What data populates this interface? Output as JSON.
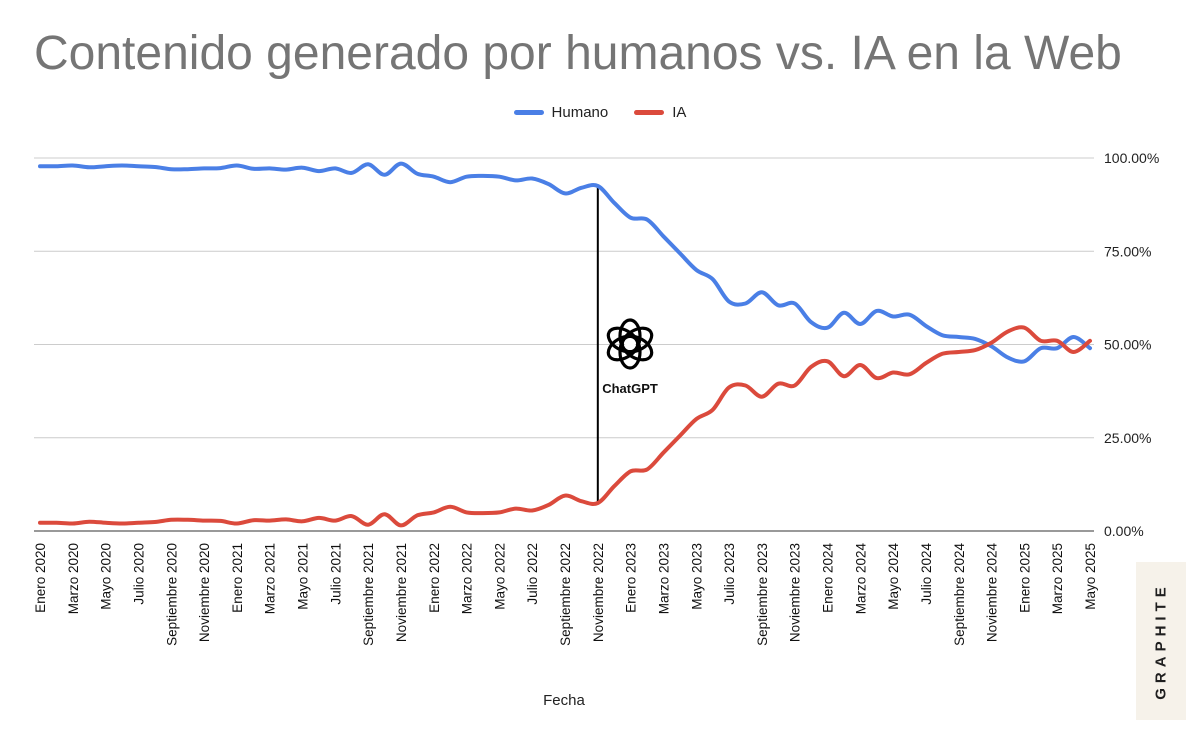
{
  "colors": {
    "human": "#4a7fe6",
    "ai": "#db4a3c",
    "grid": "#cccccc",
    "title": "#757575"
  },
  "badge": {
    "text": "GRAPHITE"
  },
  "chart_data": {
    "type": "line",
    "title": "Contenido generado por humanos vs. IA en la Web",
    "xlabel": "Fecha",
    "ylabel": "",
    "ylim": [
      0,
      100
    ],
    "y_ticks": [
      0,
      25,
      50,
      75,
      100
    ],
    "y_tick_labels": [
      "0.00%",
      "25.00%",
      "50.00%",
      "75.00%",
      "100.00%"
    ],
    "legend_position": "top-center",
    "annotation": {
      "label": "ChatGPT",
      "x_index": 34,
      "icon": "openai-logo"
    },
    "x_tick_labels": [
      "Enero 2020",
      "Marzo 2020",
      "Mayo 2020",
      "Julio 2020",
      "Septiembre 2020",
      "Noviembre 2020",
      "Enero 2021",
      "Marzo 2021",
      "Mayo 2021",
      "Julio 2021",
      "Septiembre 2021",
      "Noviembre 2021",
      "Enero 2022",
      "Marzo 2022",
      "Mayo 2022",
      "Julio 2022",
      "Septiembre 2022",
      "Noviembre 2022",
      "Enero 2023",
      "Marzo 2023",
      "Mayo 2023",
      "Julio 2023",
      "Septiembre 2023",
      "Noviembre 2023",
      "Enero 2024",
      "Marzo 2024",
      "Mayo 2024",
      "Julio 2024",
      "Septiembre 2024",
      "Noviembre 2024",
      "Enero 2025",
      "Marzo 2025",
      "Mayo 2025"
    ],
    "series": [
      {
        "name": "Humano",
        "color": "#4a7fe6",
        "values": [
          97.8,
          97.8,
          98.0,
          97.5,
          97.8,
          98.0,
          97.8,
          97.6,
          97.0,
          97.0,
          97.2,
          97.3,
          98.0,
          97.1,
          97.2,
          96.9,
          97.4,
          96.5,
          97.2,
          96.0,
          98.3,
          95.5,
          98.5,
          95.8,
          95.0,
          93.5,
          95.0,
          95.2,
          95.0,
          94.0,
          94.5,
          93.0,
          90.5,
          92.0,
          92.5,
          88.0,
          84.0,
          83.5,
          79.0,
          74.5,
          70.0,
          67.5,
          61.5,
          61.0,
          64.0,
          60.5,
          61.0,
          56.0,
          54.5,
          58.5,
          55.5,
          59.0,
          57.5,
          58.0,
          55.0,
          52.5,
          52.0,
          51.5,
          49.5,
          46.5,
          45.5,
          49.0,
          49.0,
          52.0,
          49.0
        ]
      },
      {
        "name": "IA",
        "color": "#db4a3c",
        "values": [
          2.2,
          2.2,
          2.0,
          2.5,
          2.2,
          2.0,
          2.2,
          2.4,
          3.0,
          3.0,
          2.8,
          2.7,
          2.0,
          2.9,
          2.8,
          3.1,
          2.6,
          3.5,
          2.8,
          4.0,
          1.7,
          4.5,
          1.5,
          4.2,
          5.0,
          6.5,
          5.0,
          4.8,
          5.0,
          6.0,
          5.5,
          7.0,
          9.5,
          8.0,
          7.5,
          12.0,
          16.0,
          16.5,
          21.0,
          25.5,
          30.0,
          32.5,
          38.5,
          39.0,
          36.0,
          39.5,
          39.0,
          44.0,
          45.5,
          41.5,
          44.5,
          41.0,
          42.5,
          42.0,
          45.0,
          47.5,
          48.0,
          48.5,
          50.5,
          53.5,
          54.5,
          51.0,
          51.0,
          48.0,
          51.0
        ]
      }
    ]
  }
}
